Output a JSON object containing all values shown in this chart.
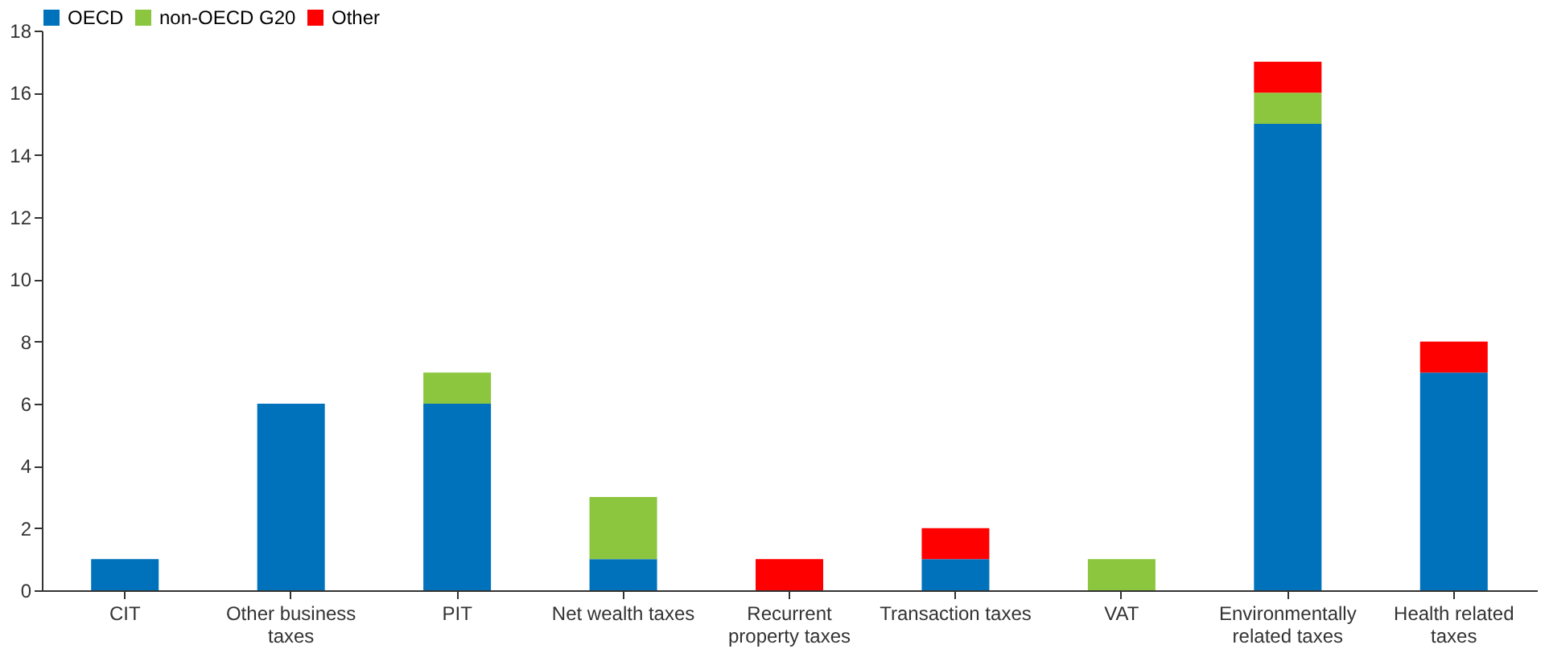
{
  "chart_data": {
    "type": "bar",
    "stacked": true,
    "categories": [
      "CIT",
      "Other business\ntaxes",
      "PIT",
      "Net wealth taxes",
      "Recurrent\nproperty taxes",
      "Transaction taxes",
      "VAT",
      "Environmentally\nrelated taxes",
      "Health related\ntaxes"
    ],
    "series": [
      {
        "name": "OECD",
        "color": "#0072bc",
        "values": [
          1,
          6,
          6,
          1,
          0,
          1,
          0,
          15,
          7
        ]
      },
      {
        "name": "non-OECD G20",
        "color": "#8cc63f",
        "values": [
          0,
          0,
          1,
          2,
          0,
          0,
          1,
          1,
          0
        ]
      },
      {
        "name": "Other",
        "color": "#ff0000",
        "values": [
          0,
          0,
          0,
          0,
          1,
          1,
          0,
          1,
          1
        ]
      }
    ],
    "ylim": [
      0,
      18
    ],
    "yticks": [
      0,
      2,
      4,
      6,
      8,
      10,
      12,
      14,
      16,
      18
    ],
    "grid": false,
    "legend": "top"
  }
}
